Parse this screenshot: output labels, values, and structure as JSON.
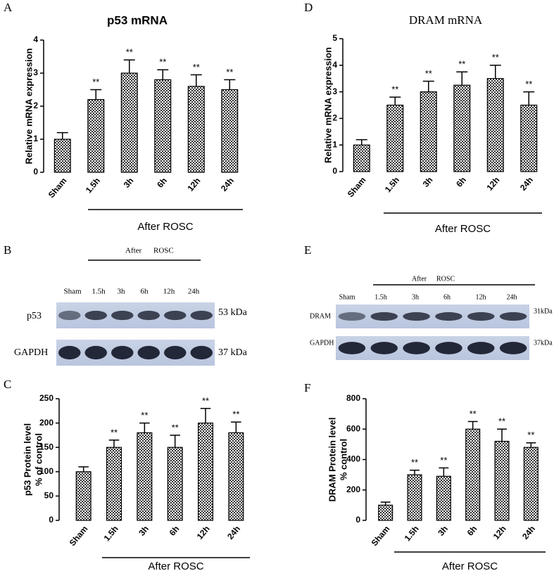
{
  "chart_data": [
    {
      "type": "bar",
      "panel": "A",
      "title": "p53 mRNA",
      "y_label": [
        "Relative mRNA expression"
      ],
      "categories": [
        "Sham",
        "1.5h",
        "3h",
        "6h",
        "12h",
        "24h"
      ],
      "values": [
        1.0,
        2.2,
        3.0,
        2.8,
        2.6,
        2.5
      ],
      "errors": [
        0.2,
        0.3,
        0.4,
        0.3,
        0.35,
        0.3
      ],
      "annotations": [
        null,
        "**",
        "**",
        "**",
        "**",
        "**"
      ],
      "group_label": "After ROSC",
      "ylim": [
        0,
        4
      ],
      "yticks": [
        0,
        1,
        2,
        3,
        4
      ],
      "color": "#000000"
    },
    {
      "type": "bar",
      "panel": "D",
      "title": "DRAM mRNA",
      "y_label": [
        "Relative mRNA expression"
      ],
      "categories": [
        "Sham",
        "1.5h",
        "3h",
        "6h",
        "12h",
        "24h"
      ],
      "values": [
        1.0,
        2.5,
        3.0,
        3.25,
        3.5,
        2.5
      ],
      "errors": [
        0.2,
        0.3,
        0.4,
        0.5,
        0.5,
        0.5
      ],
      "annotations": [
        null,
        "**",
        "**",
        "**",
        "**",
        "**"
      ],
      "group_label": "After ROSC",
      "ylim": [
        0,
        5
      ],
      "yticks": [
        0,
        1,
        2,
        3,
        4,
        5
      ],
      "color": "#000000"
    },
    {
      "type": "bar",
      "panel": "C",
      "y_label": [
        "p53 Protein level",
        "%  of control"
      ],
      "categories": [
        "Sham",
        "1.5h",
        "3h",
        "6h",
        "12h",
        "24h"
      ],
      "values": [
        100,
        150,
        180,
        150,
        200,
        180
      ],
      "errors": [
        10,
        15,
        20,
        25,
        30,
        22
      ],
      "annotations": [
        null,
        "**",
        "**",
        "**",
        "**",
        "**"
      ],
      "group_label": "After ROSC",
      "ylim": [
        0,
        250
      ],
      "yticks": [
        0,
        50,
        100,
        150,
        200,
        250
      ],
      "color": "#000000"
    },
    {
      "type": "bar",
      "panel": "F",
      "y_label": [
        "DRAM Protein level",
        "% control"
      ],
      "categories": [
        "Sham",
        "1.5h",
        "3h",
        "6h",
        "12h",
        "24h"
      ],
      "values": [
        100,
        300,
        290,
        600,
        520,
        480
      ],
      "errors": [
        20,
        30,
        55,
        50,
        80,
        30
      ],
      "annotations": [
        null,
        "**",
        "**",
        "**",
        "**",
        "**"
      ],
      "group_label": "After ROSC",
      "ylim": [
        0,
        800
      ],
      "yticks": [
        0,
        200,
        400,
        600,
        800
      ],
      "color": "#000000"
    }
  ],
  "blots": [
    {
      "panel": "B",
      "group_label": [
        "After",
        "ROSC"
      ],
      "lanes": [
        "Sham",
        "1.5h",
        "3h",
        "6h",
        "12h",
        "24h"
      ],
      "rows": [
        {
          "label": "p53",
          "size": "53 kDa"
        },
        {
          "label": "GAPDH",
          "size": "37 kDa"
        }
      ]
    },
    {
      "panel": "E",
      "group_label": [
        "After",
        "ROSC"
      ],
      "lanes": [
        "Sham",
        "1.5h",
        "3h",
        "6h",
        "12h",
        "24h"
      ],
      "rows": [
        {
          "label": "DRAM",
          "size": "31kDa"
        },
        {
          "label": "GAPDH",
          "size": "37kDa"
        }
      ]
    }
  ]
}
